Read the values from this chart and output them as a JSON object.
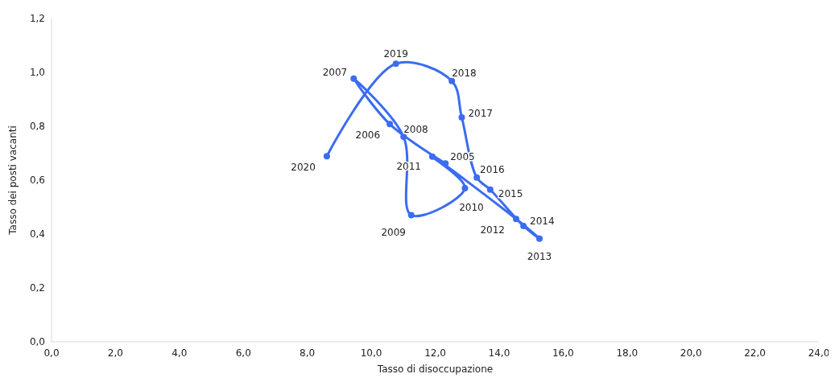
{
  "chart_data": {
    "type": "line",
    "xlabel": "Tasso di disoccupazione",
    "ylabel": "Tasso dei posti vacanti",
    "series": [
      {
        "color": "#3b6cf0",
        "x": [
          12.32,
          10.58,
          9.45,
          11.01,
          11.25,
          12.93,
          11.91,
          14.53,
          15.26,
          14.76,
          13.72,
          13.3,
          12.83,
          12.52,
          10.77,
          8.61
        ],
        "values": [
          0.662,
          0.808,
          0.977,
          0.761,
          0.47,
          0.57,
          0.687,
          0.456,
          0.383,
          0.43,
          0.565,
          0.61,
          0.833,
          0.968,
          1.032,
          0.689
        ]
      }
    ],
    "annotations": [
      {
        "text": "2005",
        "x": 12.32,
        "y": 0.662
      },
      {
        "text": "2006",
        "x": 10.58,
        "y": 0.808
      },
      {
        "text": "2007",
        "x": 9.45,
        "y": 0.977
      },
      {
        "text": "2008",
        "x": 11.01,
        "y": 0.761
      },
      {
        "text": "2009",
        "x": 11.25,
        "y": 0.47
      },
      {
        "text": "2010",
        "x": 12.93,
        "y": 0.57
      },
      {
        "text": "2011",
        "x": 11.91,
        "y": 0.687
      },
      {
        "text": "2012",
        "x": 14.53,
        "y": 0.456
      },
      {
        "text": "2013",
        "x": 15.26,
        "y": 0.383
      },
      {
        "text": "2014",
        "x": 14.76,
        "y": 0.43
      },
      {
        "text": "2015",
        "x": 13.72,
        "y": 0.565
      },
      {
        "text": "2016",
        "x": 13.3,
        "y": 0.61
      },
      {
        "text": "2017",
        "x": 12.83,
        "y": 0.833
      },
      {
        "text": "2018",
        "x": 12.52,
        "y": 0.968
      },
      {
        "text": "2019",
        "x": 10.77,
        "y": 1.032
      },
      {
        "text": "2020",
        "x": 8.61,
        "y": 0.689
      }
    ],
    "xlim": [
      0,
      24
    ],
    "xticks": [
      {
        "value": 0,
        "label": "0,0"
      },
      {
        "value": 2,
        "label": "2,0"
      },
      {
        "value": 4,
        "label": "4,0"
      },
      {
        "value": 6,
        "label": "6,0"
      },
      {
        "value": 8,
        "label": "8,0"
      },
      {
        "value": 10,
        "label": "10,0"
      },
      {
        "value": 12,
        "label": "12,0"
      },
      {
        "value": 14,
        "label": "14,0"
      },
      {
        "value": 16,
        "label": "16,0"
      },
      {
        "value": 18,
        "label": "18,0"
      },
      {
        "value": 20,
        "label": "20,0"
      },
      {
        "value": 22,
        "label": "22,0"
      },
      {
        "value": 24,
        "label": "24,0"
      }
    ],
    "ylim": [
      0,
      1.2
    ],
    "yticks": [
      {
        "value": 0,
        "label": "0,0"
      },
      {
        "value": 0.2,
        "label": "0,2"
      },
      {
        "value": 0.4,
        "label": "0,4"
      },
      {
        "value": 0.6,
        "label": "0,6"
      },
      {
        "value": 0.8,
        "label": "0,8"
      },
      {
        "value": 1.0,
        "label": "1,0"
      },
      {
        "value": 1.2,
        "label": "1,2"
      }
    ],
    "marker": "circle",
    "line_style": "solid"
  }
}
